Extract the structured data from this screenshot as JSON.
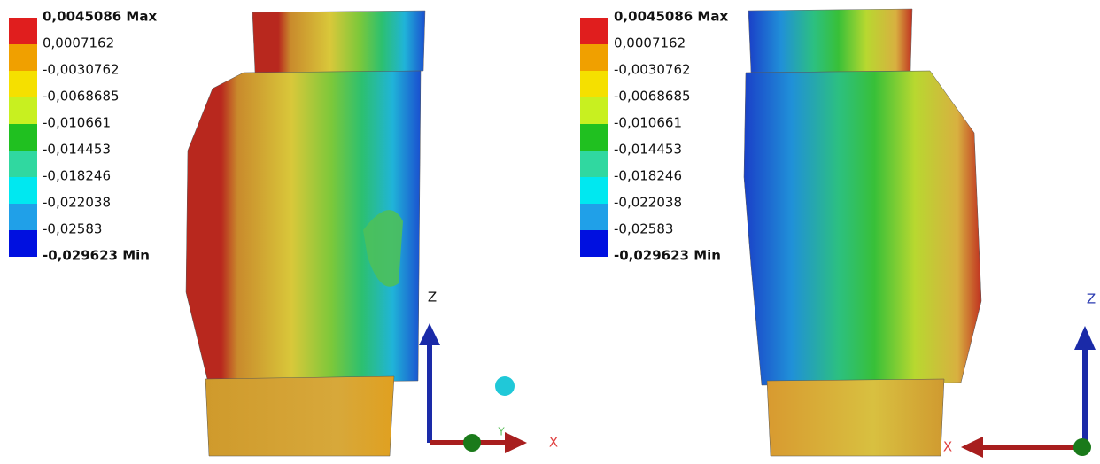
{
  "panels": [
    {
      "legend": [
        "0,0045086 Max",
        "0,0007162",
        "-0,0030762",
        "-0,0068685",
        "-0,010661",
        "-0,014453",
        "-0,018246",
        "-0,022038",
        "-0,02583",
        "-0,029623 Min"
      ],
      "axes": {
        "z": "Z",
        "x": "X",
        "y": "Y"
      }
    },
    {
      "legend": [
        "0,0045086 Max",
        "0,0007162",
        "-0,0030762",
        "-0,0068685",
        "-0,010661",
        "-0,014453",
        "-0,018246",
        "-0,022038",
        "-0,02583",
        "-0,029623 Min"
      ],
      "axes": {
        "z": "Z",
        "x": "X"
      }
    }
  ]
}
